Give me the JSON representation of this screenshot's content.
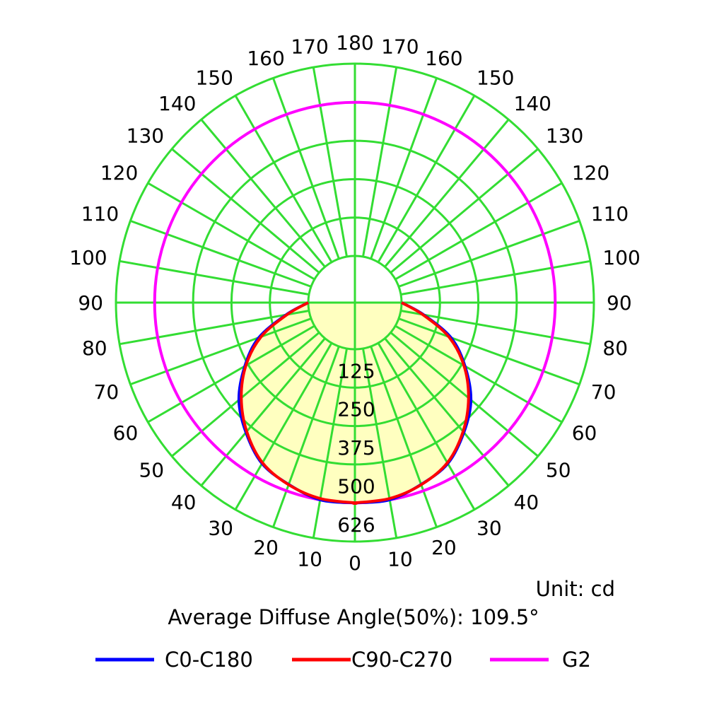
{
  "chart_data": {
    "type": "polar-intensity",
    "unit_text": "Unit: cd",
    "diffuse_text": "Average Diffuse Angle(50%): 109.5°",
    "angle_labels_left": [
      "0",
      "10",
      "20",
      "30",
      "40",
      "50",
      "60",
      "70",
      "80",
      "90",
      "100",
      "110",
      "120",
      "130",
      "140",
      "150",
      "160",
      "170",
      "180"
    ],
    "angle_labels_right": [
      "10",
      "20",
      "30",
      "40",
      "50",
      "60",
      "70",
      "80",
      "90",
      "100",
      "110",
      "120",
      "130",
      "140",
      "150",
      "160",
      "170"
    ],
    "angle_values_left": [
      0,
      10,
      20,
      30,
      40,
      50,
      60,
      70,
      80,
      90,
      100,
      110,
      120,
      130,
      140,
      150,
      160,
      170,
      180
    ],
    "angle_values_right": [
      10,
      20,
      30,
      40,
      50,
      60,
      70,
      80,
      90,
      100,
      110,
      120,
      130,
      140,
      150,
      160,
      170
    ],
    "radial_ticks": [
      125,
      250,
      375,
      500,
      626
    ],
    "radial_labels": [
      "125",
      "250",
      "375",
      "500",
      "626"
    ],
    "r_max": 626,
    "colors": {
      "grid": "#33dd33",
      "fill": "#ffffc0",
      "c0": "#0000ff",
      "c90": "#ff0000",
      "g2": "#ff00ff"
    },
    "series": [
      {
        "name": "C0-C180",
        "color": "#0000ff",
        "angles": [
          0,
          10,
          20,
          30,
          40,
          50,
          60,
          70,
          80,
          90
        ],
        "values": [
          500,
          500,
          478,
          453,
          400,
          341,
          262,
          181,
          75,
          0
        ]
      },
      {
        "name": "C90-C270",
        "color": "#ff0000",
        "angles": [
          0,
          10,
          20,
          30,
          40,
          50,
          60,
          70,
          80,
          90
        ],
        "values": [
          500,
          496,
          479,
          450,
          396,
          331,
          258,
          173,
          72,
          0
        ]
      },
      {
        "name": "G2",
        "color": "#ff00ff",
        "angles": [
          0,
          90,
          180
        ],
        "values": [
          500,
          500,
          500
        ]
      }
    ],
    "legend": [
      {
        "label": "C0-C180",
        "color": "#0000ff"
      },
      {
        "label": "C90-C270",
        "color": "#ff0000"
      },
      {
        "label": "G2",
        "color": "#ff00ff"
      }
    ]
  }
}
